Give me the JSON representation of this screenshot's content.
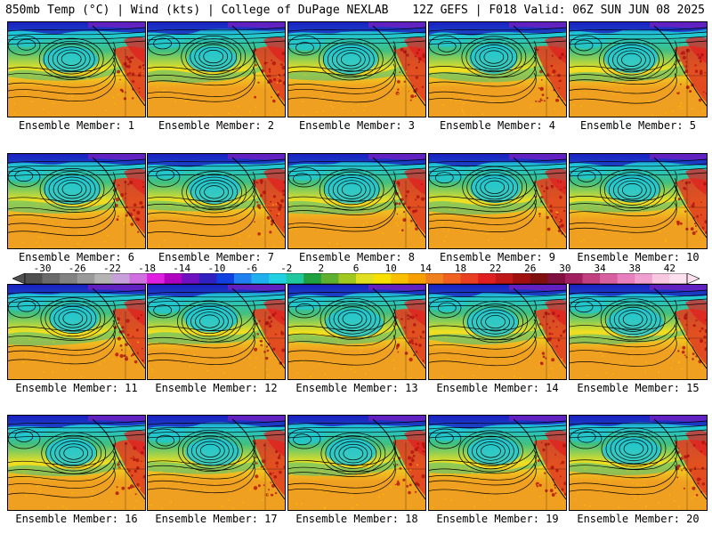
{
  "header": {
    "left": "850mb Temp (°C) | Wind (kts) | College of DuPage NEXLAB",
    "right": "12Z GEFS | F018 Valid: 06Z SUN JUN 08 2025"
  },
  "panels": [
    {
      "member": 1,
      "caption": "Ensemble Member: 1"
    },
    {
      "member": 2,
      "caption": "Ensemble Member: 2"
    },
    {
      "member": 3,
      "caption": "Ensemble Member: 3"
    },
    {
      "member": 4,
      "caption": "Ensemble Member: 4"
    },
    {
      "member": 5,
      "caption": "Ensemble Member: 5"
    },
    {
      "member": 6,
      "caption": "Ensemble Member: 6"
    },
    {
      "member": 7,
      "caption": "Ensemble Member: 7"
    },
    {
      "member": 8,
      "caption": "Ensemble Member: 8"
    },
    {
      "member": 9,
      "caption": "Ensemble Member: 9"
    },
    {
      "member": 10,
      "caption": "Ensemble Member: 10"
    },
    {
      "member": 11,
      "caption": "Ensemble Member: 11"
    },
    {
      "member": 12,
      "caption": "Ensemble Member: 12"
    },
    {
      "member": 13,
      "caption": "Ensemble Member: 13"
    },
    {
      "member": 14,
      "caption": "Ensemble Member: 14"
    },
    {
      "member": 15,
      "caption": "Ensemble Member: 15"
    },
    {
      "member": 16,
      "caption": "Ensemble Member: 16"
    },
    {
      "member": 17,
      "caption": "Ensemble Member: 17"
    },
    {
      "member": 18,
      "caption": "Ensemble Member: 18"
    },
    {
      "member": 19,
      "caption": "Ensemble Member: 19"
    },
    {
      "member": 20,
      "caption": "Ensemble Member: 20"
    }
  ],
  "colorbar": {
    "min": -32,
    "max": 44,
    "step": 2,
    "labels": [
      "-30",
      "-26",
      "-22",
      "-18",
      "-14",
      "-10",
      "-6",
      "-2",
      "2",
      "6",
      "10",
      "14",
      "18",
      "22",
      "26",
      "30",
      "34",
      "38",
      "42"
    ],
    "colors": [
      "#505050",
      "#6a6a6a",
      "#828282",
      "#9a9a9a",
      "#b4b4b4",
      "#c8a0dc",
      "#d070e0",
      "#e020e0",
      "#b000c0",
      "#7010c0",
      "#3020c0",
      "#1040e0",
      "#2080f0",
      "#20b0f0",
      "#20d0e0",
      "#20c8a0",
      "#20a040",
      "#60b030",
      "#a0c820",
      "#e0e020",
      "#f8e000",
      "#f8c000",
      "#f8a000",
      "#f08020",
      "#f06020",
      "#e84020",
      "#e02020",
      "#c01818",
      "#a01010",
      "#801010",
      "#801040",
      "#a02060",
      "#c04080",
      "#d860a0",
      "#e880c0",
      "#f0a0d0",
      "#f8c8e0",
      "#fce0f0"
    ]
  },
  "field_colors": {
    "cold": "#20c8d8",
    "cool": "#40c080",
    "mild": "#f0e020",
    "warm": "#f0a020",
    "hot": "#e04020",
    "deep_blue": "#1a20c0",
    "purple": "#8020c0",
    "contour": "#000000"
  }
}
